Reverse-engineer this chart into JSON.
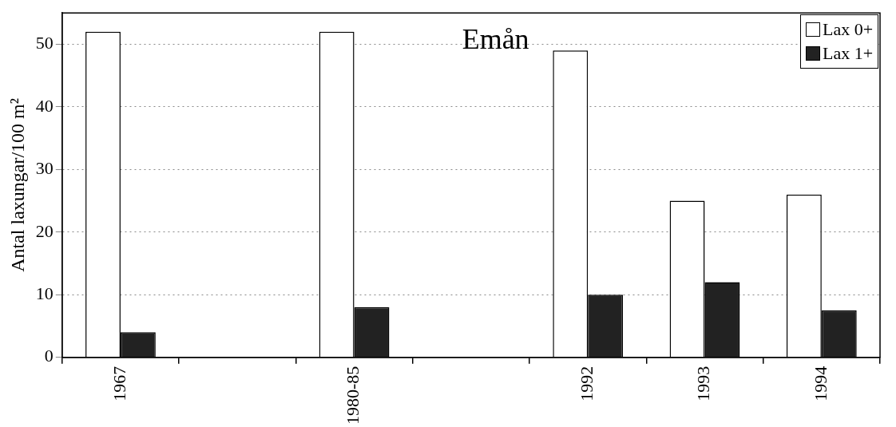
{
  "chart_data": {
    "type": "bar",
    "annotations": [
      "Emån"
    ],
    "ylabel": "Antal laxungar/100 m²",
    "categories": [
      "1967",
      null,
      "1980-85",
      null,
      "1992",
      "1993",
      "1994"
    ],
    "series": [
      {
        "name": "Lax 0+",
        "color": "#ffffff",
        "values": [
          52,
          null,
          52,
          null,
          49,
          25,
          26
        ]
      },
      {
        "name": "Lax 1+",
        "color": "#222222",
        "values": [
          4,
          null,
          8,
          null,
          10,
          12,
          7.5
        ]
      }
    ],
    "ylim": [
      0,
      55
    ],
    "yticks": [
      0,
      10,
      20,
      30,
      40,
      50
    ],
    "grid": "y",
    "legend": "top right"
  }
}
